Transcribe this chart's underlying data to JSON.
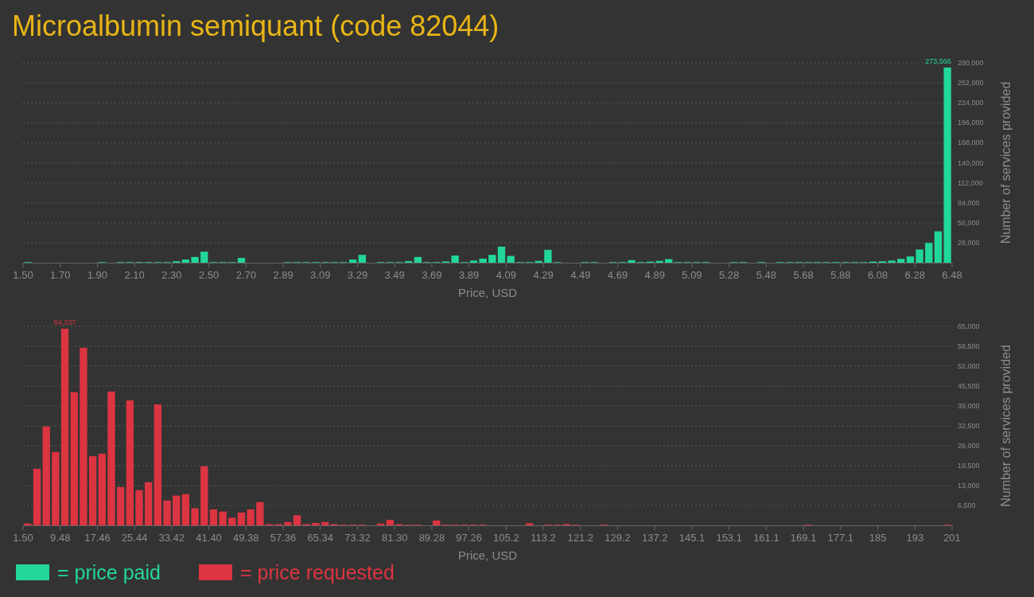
{
  "chart_data": [
    {
      "type": "histogram",
      "title": "Microalbumin semiquant (code 82044)",
      "xlabel": "Price, USD",
      "ylabel": "Number of services provided",
      "grid": "y",
      "legend": "bottom",
      "bins": [
        1.5,
        1.5498,
        1.5996,
        1.6494,
        1.6992,
        1.749,
        1.7988,
        1.8486,
        1.8984,
        1.9482,
        1.998,
        2.0478,
        2.0976,
        2.1474,
        2.1972,
        2.247,
        2.2968,
        2.3466,
        2.3964,
        2.4462,
        2.496,
        2.5458,
        2.5956,
        2.6454,
        2.6952,
        2.745,
        2.7948,
        2.8446,
        2.8944,
        2.9442,
        2.994,
        3.0438,
        3.0936,
        3.1434,
        3.1932,
        3.243,
        3.2928,
        3.3426,
        3.3924,
        3.4422,
        3.492,
        3.5418,
        3.5916,
        3.6414,
        3.6912,
        3.741,
        3.7908,
        3.8406,
        3.8904,
        3.9402,
        3.99,
        4.0398,
        4.0896,
        4.1394,
        4.1892,
        4.239,
        4.2888,
        4.3386,
        4.3884,
        4.4382,
        4.488,
        4.5378,
        4.5876,
        4.6374,
        4.6872,
        4.737,
        4.7868,
        4.8366,
        4.8864,
        4.9362,
        4.986,
        5.0358,
        5.0856,
        5.1354,
        5.1852,
        5.235,
        5.2848,
        5.3346,
        5.3844,
        5.4342,
        5.484,
        5.5338,
        5.5836,
        5.6334,
        5.6832,
        5.733,
        5.7828,
        5.8326,
        5.8824,
        5.9322,
        5.982,
        6.0318,
        6.0816,
        6.1314,
        6.1812,
        6.231,
        6.2808,
        6.3306,
        6.3804,
        6.4302,
        6.48
      ],
      "series": [
        {
          "name": "= price paid",
          "color": "#21d799",
          "values": [
            800,
            0,
            0,
            0,
            0,
            0,
            0,
            0,
            800,
            0,
            800,
            800,
            800,
            800,
            800,
            800,
            2000,
            4400,
            8000,
            15400,
            800,
            800,
            800,
            6600,
            0,
            0,
            0,
            0,
            800,
            800,
            800,
            800,
            800,
            800,
            800,
            4400,
            11000,
            0,
            800,
            800,
            800,
            2200,
            8000,
            800,
            800,
            1800,
            10000,
            800,
            3000,
            5700,
            11000,
            22500,
            9500,
            800,
            800,
            2500,
            18000,
            800,
            0,
            0,
            800,
            800,
            0,
            800,
            800,
            3500,
            800,
            1500,
            2500,
            5000,
            800,
            800,
            800,
            800,
            0,
            0,
            800,
            800,
            0,
            800,
            0,
            800,
            800,
            800,
            800,
            800,
            800,
            800,
            800,
            800,
            800,
            1500,
            2000,
            3000,
            5300,
            8700,
            18500,
            27700,
            44000,
            273566
          ],
          "value_labels": [
            null,
            null,
            null,
            null,
            null,
            null,
            null,
            null,
            null,
            null,
            null,
            null,
            null,
            null,
            null,
            null,
            null,
            null,
            null,
            null,
            null,
            null,
            null,
            null,
            null,
            null,
            null,
            null,
            null,
            null,
            null,
            null,
            null,
            null,
            null,
            null,
            null,
            null,
            null,
            null,
            null,
            null,
            null,
            null,
            null,
            null,
            null,
            null,
            null,
            null,
            null,
            null,
            null,
            null,
            null,
            null,
            null,
            null,
            null,
            null,
            null,
            null,
            null,
            null,
            null,
            null,
            null,
            null,
            null,
            null,
            null,
            null,
            null,
            null,
            null,
            null,
            null,
            null,
            null,
            null,
            null,
            null,
            null,
            null,
            null,
            null,
            null,
            null,
            null,
            null,
            null,
            null,
            null,
            null,
            null,
            null,
            null,
            null,
            null,
            "273,566"
          ]
        }
      ],
      "xlim": [
        1.5,
        6.48
      ],
      "xticks": [
        {
          "value": 1.5,
          "label": "1.50"
        },
        {
          "value": 1.6992,
          "label": "1.70"
        },
        {
          "value": 1.8984,
          "label": "1.90"
        },
        {
          "value": 2.0976,
          "label": "2.10"
        },
        {
          "value": 2.2968,
          "label": "2.30"
        },
        {
          "value": 2.496,
          "label": "2.50"
        },
        {
          "value": 2.6952,
          "label": "2.70"
        },
        {
          "value": 2.8944,
          "label": "2.89"
        },
        {
          "value": 3.0936,
          "label": "3.09"
        },
        {
          "value": 3.2928,
          "label": "3.29"
        },
        {
          "value": 3.492,
          "label": "3.49"
        },
        {
          "value": 3.6912,
          "label": "3.69"
        },
        {
          "value": 3.8904,
          "label": "3.89"
        },
        {
          "value": 4.0896,
          "label": "4.09"
        },
        {
          "value": 4.2888,
          "label": "4.29"
        },
        {
          "value": 4.488,
          "label": "4.49"
        },
        {
          "value": 4.6872,
          "label": "4.69"
        },
        {
          "value": 4.8864,
          "label": "4.89"
        },
        {
          "value": 5.0856,
          "label": "5.09"
        },
        {
          "value": 5.2848,
          "label": "5.28"
        },
        {
          "value": 5.484,
          "label": "5.48"
        },
        {
          "value": 5.6832,
          "label": "5.68"
        },
        {
          "value": 5.8824,
          "label": "5.88"
        },
        {
          "value": 6.0816,
          "label": "6.08"
        },
        {
          "value": 6.2808,
          "label": "6.28"
        },
        {
          "value": 6.48,
          "label": "6.48"
        }
      ],
      "ylim": [
        0,
        280000
      ],
      "yticks": [
        {
          "value": 28000,
          "label": "28,000"
        },
        {
          "value": 56000,
          "label": "56,000"
        },
        {
          "value": 84000,
          "label": "84,000"
        },
        {
          "value": 112000,
          "label": "112,000"
        },
        {
          "value": 140000,
          "label": "140,000"
        },
        {
          "value": 168000,
          "label": "168,000"
        },
        {
          "value": 196000,
          "label": "196,000"
        },
        {
          "value": 224000,
          "label": "224,000"
        },
        {
          "value": 252000,
          "label": "252,000"
        },
        {
          "value": 280000,
          "label": "280,000"
        }
      ]
    },
    {
      "type": "histogram",
      "xlabel": "Price, USD",
      "ylabel": "Number of services provided",
      "grid": "y",
      "legend": "bottom",
      "bins": [
        1.5,
        3.495,
        5.49,
        7.485,
        9.48,
        11.475,
        13.47,
        15.465,
        17.46,
        19.455,
        21.45,
        23.445,
        25.44,
        27.435,
        29.43,
        31.425,
        33.42,
        35.415,
        37.41,
        39.405,
        41.4,
        43.395,
        45.39,
        47.385,
        49.38,
        51.375,
        53.37,
        55.365,
        57.36,
        59.355,
        61.35,
        63.345,
        65.34,
        67.335,
        69.33,
        71.325,
        73.32,
        75.315,
        77.31,
        79.305,
        81.3,
        83.295,
        85.29,
        87.285,
        89.28,
        91.275,
        93.27,
        95.265,
        97.26,
        99.255,
        101.25,
        103.245,
        105.24,
        107.235,
        109.23,
        111.225,
        113.22,
        115.215,
        117.21,
        119.205,
        121.2,
        123.195,
        125.19,
        127.185,
        129.18,
        131.175,
        133.17,
        135.165,
        137.16,
        139.155,
        141.15,
        143.145,
        145.14,
        147.135,
        149.13,
        151.125,
        153.12,
        155.115,
        157.11,
        159.105,
        161.1,
        163.095,
        165.09,
        167.085,
        169.08,
        171.075,
        173.07,
        175.065,
        177.06,
        179.055,
        181.05,
        183.045,
        185.04,
        187.035,
        189.03,
        191.025,
        193.02,
        195.015,
        197.01,
        199.005,
        201
      ],
      "series": [
        {
          "name": "= price requested",
          "color": "#dc3441",
          "values": [
            600,
            18500,
            32300,
            24000,
            64237,
            43500,
            58000,
            22600,
            23400,
            43700,
            12500,
            40800,
            11500,
            14100,
            39500,
            8100,
            9700,
            10200,
            5600,
            19300,
            5200,
            4500,
            2500,
            4200,
            5200,
            7600,
            400,
            400,
            1100,
            3300,
            400,
            800,
            1100,
            400,
            200,
            200,
            200,
            0,
            600,
            1800,
            400,
            200,
            200,
            0,
            1600,
            200,
            200,
            200,
            200,
            200,
            0,
            0,
            0,
            0,
            700,
            0,
            200,
            200,
            400,
            200,
            0,
            0,
            200,
            0,
            0,
            0,
            0,
            0,
            0,
            0,
            0,
            0,
            0,
            0,
            0,
            0,
            0,
            0,
            0,
            0,
            0,
            0,
            0,
            0,
            200,
            0,
            0,
            0,
            0,
            0,
            0,
            0,
            0,
            0,
            0,
            0,
            0,
            0,
            0,
            200
          ],
          "value_labels": [
            null,
            null,
            null,
            null,
            "64,237",
            null,
            null,
            null,
            null,
            null,
            null,
            null,
            null,
            null,
            null,
            null,
            null,
            null,
            null,
            null,
            null,
            null,
            null,
            null,
            null,
            null,
            null,
            null,
            null,
            null,
            null,
            null,
            null,
            null,
            null,
            null,
            null,
            null,
            null,
            null,
            null,
            null,
            null,
            null,
            null,
            null,
            null,
            null,
            null,
            null,
            null,
            null,
            null,
            null,
            null,
            null,
            null,
            null,
            null,
            null,
            null,
            null,
            null,
            null,
            null,
            null,
            null,
            null,
            null,
            null,
            null,
            null,
            null,
            null,
            null,
            null,
            null,
            null,
            null,
            null,
            null,
            null,
            null,
            null,
            null,
            null,
            null,
            null,
            null,
            null,
            null,
            null,
            null,
            null,
            null,
            null,
            null,
            null,
            null,
            null
          ]
        }
      ],
      "xlim": [
        1.5,
        201
      ],
      "xticks": [
        {
          "value": 1.5,
          "label": "1.50"
        },
        {
          "value": 9.48,
          "label": "9.48"
        },
        {
          "value": 17.46,
          "label": "17.46"
        },
        {
          "value": 25.44,
          "label": "25.44"
        },
        {
          "value": 33.42,
          "label": "33.42"
        },
        {
          "value": 41.4,
          "label": "41.40"
        },
        {
          "value": 49.38,
          "label": "49.38"
        },
        {
          "value": 57.36,
          "label": "57.36"
        },
        {
          "value": 65.34,
          "label": "65.34"
        },
        {
          "value": 73.32,
          "label": "73.32"
        },
        {
          "value": 81.3,
          "label": "81.30"
        },
        {
          "value": 89.28,
          "label": "89.28"
        },
        {
          "value": 97.26,
          "label": "97.26"
        },
        {
          "value": 105.24,
          "label": "105.2"
        },
        {
          "value": 113.22,
          "label": "113.2"
        },
        {
          "value": 121.2,
          "label": "121.2"
        },
        {
          "value": 129.18,
          "label": "129.2"
        },
        {
          "value": 137.16,
          "label": "137.2"
        },
        {
          "value": 145.14,
          "label": "145.1"
        },
        {
          "value": 153.12,
          "label": "153.1"
        },
        {
          "value": 161.1,
          "label": "161.1"
        },
        {
          "value": 169.08,
          "label": "169.1"
        },
        {
          "value": 177.06,
          "label": "177.1"
        },
        {
          "value": 185.04,
          "label": "185"
        },
        {
          "value": 193.02,
          "label": "193"
        },
        {
          "value": 201,
          "label": "201"
        }
      ],
      "ylim": [
        0,
        65000
      ],
      "yticks": [
        {
          "value": 6500,
          "label": "6,500"
        },
        {
          "value": 13000,
          "label": "13,000"
        },
        {
          "value": 19500,
          "label": "19,500"
        },
        {
          "value": 26000,
          "label": "26,000"
        },
        {
          "value": 32500,
          "label": "32,500"
        },
        {
          "value": 39000,
          "label": "39,000"
        },
        {
          "value": 45500,
          "label": "45,500"
        },
        {
          "value": 52000,
          "label": "52,000"
        },
        {
          "value": 58500,
          "label": "58,500"
        },
        {
          "value": 65000,
          "label": "65,000"
        }
      ]
    }
  ]
}
